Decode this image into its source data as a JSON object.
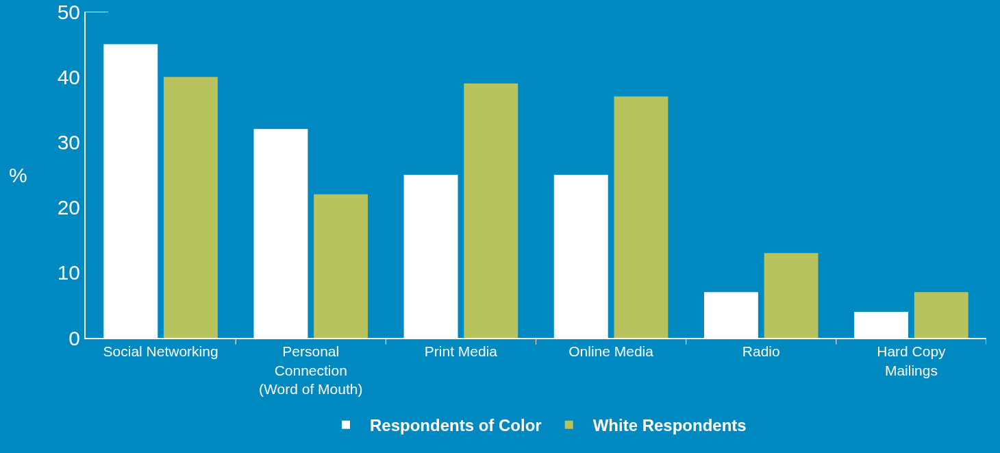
{
  "chart_data": {
    "type": "bar",
    "ylabel": "%",
    "categories": [
      "Social Networking",
      "Personal\nConnection\n(Word of Mouth)",
      "Print Media",
      "Online Media",
      "Radio",
      "Hard Copy\nMailings"
    ],
    "series": [
      {
        "name": "Respondents of Color",
        "color": "#ffffff",
        "values": [
          45,
          32,
          25,
          25,
          7,
          4
        ]
      },
      {
        "name": "White Respondents",
        "color": "#b8c35d",
        "values": [
          40,
          22,
          39,
          37,
          13,
          7
        ]
      }
    ],
    "ylim": [
      0,
      50
    ],
    "yticks": [
      0,
      10,
      20,
      30,
      40,
      50
    ],
    "grid": false,
    "legend": "bottom"
  }
}
